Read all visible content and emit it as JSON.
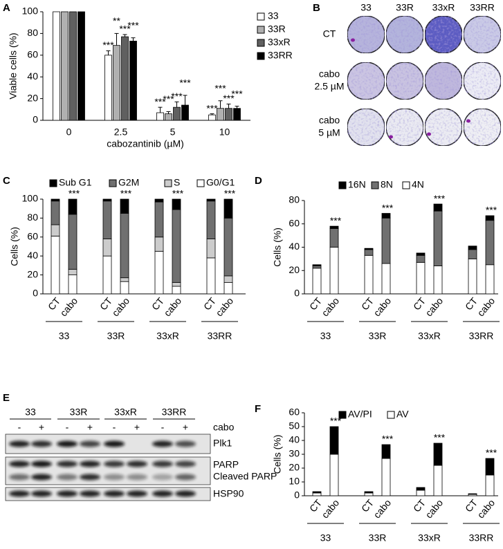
{
  "chart_data": [
    {
      "type": "bar",
      "panel": "A",
      "ylabel": "Viable cells (%)",
      "xlabel": "cabozantinib (µM)",
      "categories": [
        "0",
        "2.5",
        "5",
        "10"
      ],
      "series": [
        {
          "name": "33",
          "color": "#ffffff",
          "values": [
            100,
            60,
            7,
            5
          ],
          "errors": [
            null,
            4,
            5,
            1
          ],
          "annotations": [
            null,
            "***",
            "***",
            "***"
          ]
        },
        {
          "name": "33R",
          "color": "#b0b0b0",
          "values": [
            100,
            69,
            6,
            11
          ],
          "errors": [
            null,
            11,
            2,
            7
          ],
          "annotations": [
            null,
            "**",
            "***",
            "***"
          ]
        },
        {
          "name": "33xR",
          "color": "#606060",
          "values": [
            100,
            77,
            12,
            11
          ],
          "errors": [
            null,
            2,
            5,
            4
          ],
          "annotations": [
            null,
            "***",
            "***",
            "***"
          ]
        },
        {
          "name": "33RR",
          "color": "#000000",
          "values": [
            100,
            73,
            14,
            11
          ],
          "errors": [
            null,
            3,
            9,
            2
          ],
          "annotations": [
            null,
            "***",
            "***",
            "***"
          ]
        }
      ],
      "ylim": [
        0,
        100
      ],
      "yticks": [
        0,
        20,
        40,
        60,
        80,
        100
      ],
      "legend": "top-right"
    },
    {
      "type": "bar",
      "stacked": true,
      "panel": "C",
      "ylabel": "Cells (%)",
      "categories": [
        "CT",
        "cabo",
        "CT",
        "cabo",
        "CT",
        "cabo",
        "CT",
        "cabo"
      ],
      "groups": [
        "33",
        "33R",
        "33xR",
        "33RR"
      ],
      "series": [
        {
          "name": "Sub G1",
          "color": "#000000",
          "values": [
            2,
            16,
            2,
            15,
            3,
            11,
            2,
            20
          ]
        },
        {
          "name": "G2M",
          "color": "#707070",
          "values": [
            25,
            58,
            40,
            68,
            37,
            77,
            40,
            61
          ]
        },
        {
          "name": "S",
          "color": "#cccccc",
          "values": [
            12,
            6,
            18,
            4,
            15,
            4,
            20,
            7
          ]
        },
        {
          "name": "G0/G1",
          "color": "#ffffff",
          "values": [
            61,
            20,
            40,
            13,
            45,
            8,
            38,
            12
          ]
        }
      ],
      "annotations": [
        null,
        "***",
        null,
        "***",
        null,
        "***",
        null,
        "***"
      ],
      "ylim": [
        0,
        100
      ],
      "yticks": [
        0,
        20,
        40,
        60,
        80,
        100
      ],
      "legend": "top"
    },
    {
      "type": "bar",
      "stacked": true,
      "panel": "D",
      "ylabel": "Cells (%)",
      "categories": [
        "CT",
        "cabo",
        "CT",
        "cabo",
        "CT",
        "cabo",
        "CT",
        "cabo"
      ],
      "groups": [
        "33",
        "33R",
        "33xR",
        "33RR"
      ],
      "series": [
        {
          "name": "16N",
          "color": "#000000",
          "values": [
            1,
            2,
            1,
            4,
            2,
            6,
            3,
            4
          ]
        },
        {
          "name": "8N",
          "color": "#707070",
          "values": [
            2,
            16,
            5,
            39,
            6,
            47,
            8,
            38
          ]
        },
        {
          "name": "4N",
          "color": "#ffffff",
          "values": [
            22,
            40,
            33,
            26,
            27,
            24,
            30,
            25
          ]
        }
      ],
      "annotations": [
        null,
        "***",
        null,
        "***",
        null,
        "***",
        null,
        "***"
      ],
      "ylim": [
        0,
        80
      ],
      "yticks": [
        0,
        20,
        40,
        60,
        80
      ],
      "legend": "top"
    },
    {
      "type": "bar",
      "stacked": true,
      "panel": "F",
      "ylabel": "Cells (%)",
      "categories": [
        "CT",
        "cabo",
        "CT",
        "cabo",
        "CT",
        "cabo",
        "CT",
        "cabo"
      ],
      "groups": [
        "33",
        "33R",
        "33xR",
        "33RR"
      ],
      "series": [
        {
          "name": "AV/PI",
          "color": "#000000",
          "values": [
            1,
            20,
            1,
            10,
            2,
            16,
            0.5,
            12
          ]
        },
        {
          "name": "AV",
          "color": "#ffffff",
          "values": [
            2,
            30,
            2,
            27,
            4,
            22,
            1,
            15
          ]
        }
      ],
      "annotations": [
        null,
        "***",
        null,
        "***",
        null,
        "***",
        null,
        "***"
      ],
      "ylim": [
        0,
        60
      ],
      "yticks": [
        0,
        10,
        20,
        30,
        40,
        50,
        60
      ],
      "legend": "top"
    }
  ],
  "panel_b": {
    "panel": "B",
    "columns": [
      "33",
      "33R",
      "33xR",
      "33RR"
    ],
    "rows": [
      [
        "CT"
      ],
      [
        "cabo",
        "2.5 µM"
      ],
      [
        "cabo",
        "5 µM"
      ]
    ]
  },
  "panel_e": {
    "panel": "E",
    "groups": [
      "33",
      "33R",
      "33xR",
      "33RR"
    ],
    "treatment": "cabo",
    "lanes": [
      "-",
      "+",
      "-",
      "+",
      "-",
      "+",
      "-",
      "+"
    ],
    "bands": [
      "Plk1",
      "PARP",
      "Cleaved PARP",
      "HSP90"
    ]
  }
}
